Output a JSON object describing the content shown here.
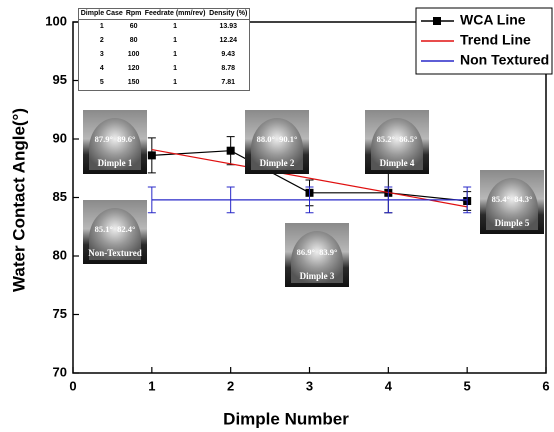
{
  "chart_data": {
    "type": "line",
    "xlabel": "Dimple Number",
    "ylabel": "Water Contact Angle(°)",
    "xlim": [
      0,
      6
    ],
    "xticks": [
      0,
      1,
      2,
      3,
      4,
      5,
      6
    ],
    "ylim": [
      70,
      100
    ],
    "yticks": [
      70,
      75,
      80,
      85,
      90,
      95,
      100
    ],
    "legend": "upper right",
    "series": [
      {
        "name": "WCA Line",
        "color": "#000000",
        "marker": "square",
        "x": [
          1,
          2,
          3,
          4,
          5
        ],
        "values": [
          88.6,
          89.0,
          85.4,
          85.4,
          84.7
        ],
        "errors": [
          1.5,
          1.2,
          1.1,
          1.7,
          0.8
        ]
      },
      {
        "name": "Trend Line",
        "color": "#e01010",
        "x": [
          1,
          5
        ],
        "values": [
          89.1,
          84.2
        ]
      },
      {
        "name": "Non Textured",
        "color": "#2828c8",
        "x": [
          1,
          2,
          3,
          4,
          5
        ],
        "values": [
          84.8,
          84.8,
          84.8,
          84.8,
          84.8
        ],
        "errors": [
          1.1,
          1.1,
          1.1,
          1.1,
          1.1
        ]
      }
    ],
    "table": {
      "columns": [
        "Dimple Case",
        "Rpm",
        "Feedrate (mm/rev)",
        "Density (%)"
      ],
      "rows": [
        [
          "1",
          "60",
          "1",
          "13.93"
        ],
        [
          "2",
          "80",
          "1",
          "12.24"
        ],
        [
          "3",
          "100",
          "1",
          "9.43"
        ],
        [
          "4",
          "120",
          "1",
          "8.78"
        ],
        [
          "5",
          "150",
          "1",
          "7.81"
        ]
      ]
    },
    "insets": [
      {
        "left": "87.9°",
        "right": "89.6°",
        "label": "Dimple 1"
      },
      {
        "left": "88.0°",
        "right": "90.1°",
        "label": "Dimple 2"
      },
      {
        "left": "86.9°",
        "right": "83.9°",
        "label": "Dimple 3"
      },
      {
        "left": "85.2°",
        "right": "86.5°",
        "label": "Dimple 4"
      },
      {
        "left": "85.4°",
        "right": "84.3°",
        "label": "Dimple 5"
      },
      {
        "left": "85.1°",
        "right": "82.4°",
        "label": "Non-Textured"
      }
    ]
  }
}
